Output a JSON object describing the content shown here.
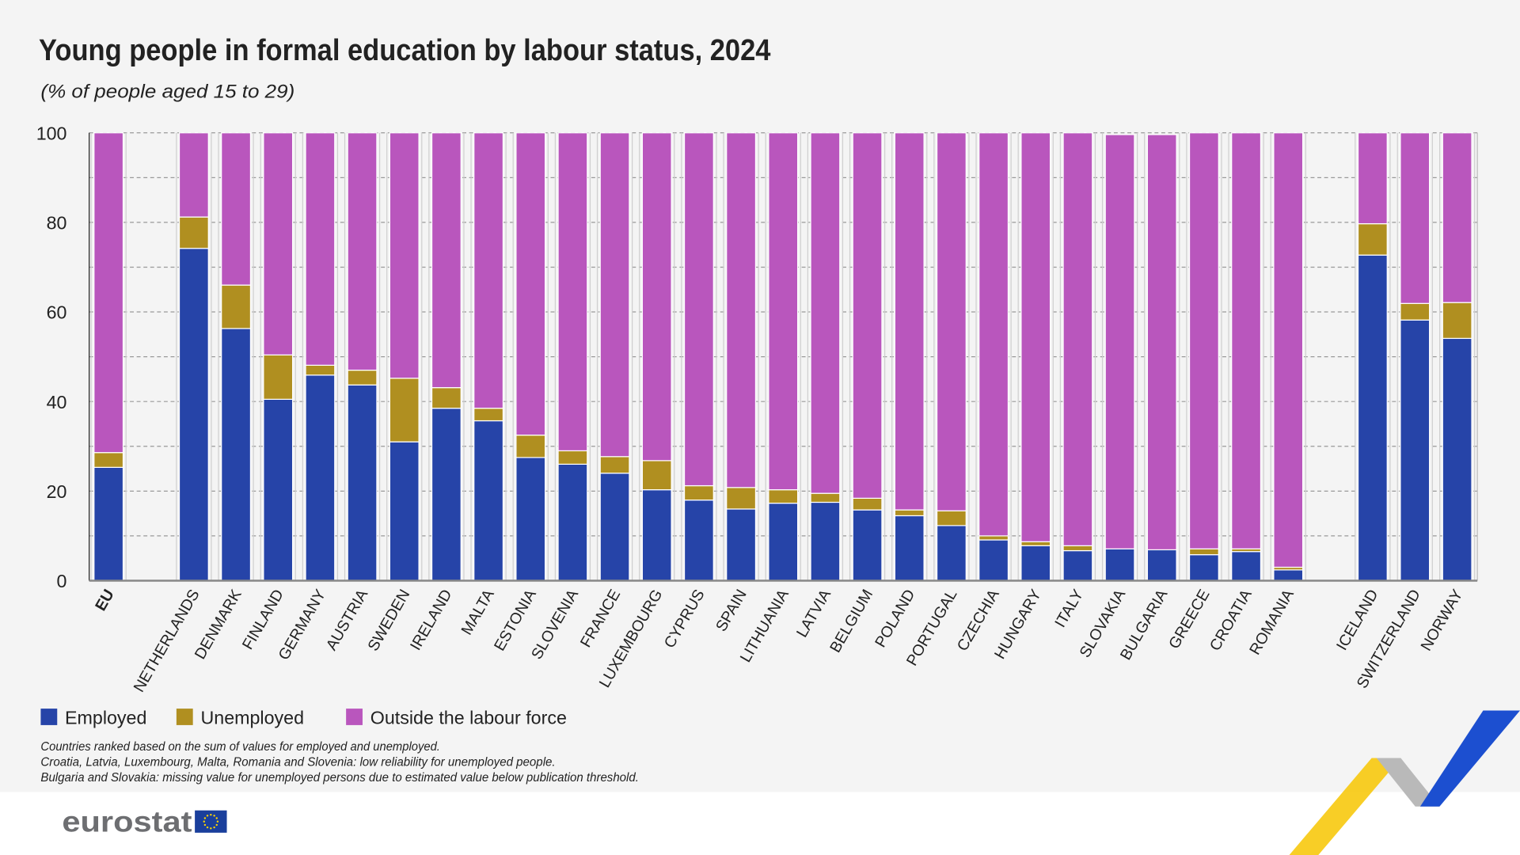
{
  "chart_data": {
    "type": "bar",
    "stacked": true,
    "title": "Young people in formal education by labour status, 2024",
    "subtitle": "(% of people aged 15 to 29)",
    "ylim": [
      0,
      100
    ],
    "yticks": [
      "0",
      "20",
      "40",
      "60",
      "80",
      "100"
    ],
    "grid": true,
    "legend_placement": "bottom-left",
    "categories": [
      "EU",
      "NETHERLANDS",
      "DENMARK",
      "FINLAND",
      "GERMANY",
      "AUSTRIA",
      "SWEDEN",
      "IRELAND",
      "MALTA",
      "ESTONIA",
      "SLOVENIA",
      "FRANCE",
      "LUXEMBOURG",
      "CYPRUS",
      "SPAIN",
      "LITHUANIA",
      "LATVIA",
      "BELGIUM",
      "POLAND",
      "PORTUGAL",
      "CZECHIA",
      "HUNGARY",
      "ITALY",
      "SLOVAKIA",
      "BULGARIA",
      "GREECE",
      "CROATIA",
      "ROMANIA",
      "ICELAND",
      "SWITZERLAND",
      "NORWAY"
    ],
    "series": [
      {
        "name": "Employed",
        "color": "#2644a8",
        "values": [
          25.3,
          74.2,
          56.3,
          40.5,
          45.9,
          43.7,
          31.0,
          38.5,
          35.7,
          27.5,
          26.0,
          24.0,
          20.3,
          18.0,
          16.0,
          17.3,
          17.5,
          15.8,
          14.5,
          12.3,
          9.1,
          7.8,
          6.7,
          7.1,
          6.9,
          5.8,
          6.5,
          2.4,
          72.7,
          58.2,
          54.1
        ]
      },
      {
        "name": "Unemployed",
        "color": "#b08f20",
        "values": [
          3.3,
          7.0,
          9.7,
          9.9,
          2.2,
          3.3,
          14.2,
          4.6,
          2.8,
          5.0,
          3.0,
          3.7,
          6.5,
          3.2,
          4.8,
          3.0,
          2.0,
          2.6,
          1.3,
          3.3,
          0.9,
          0.9,
          1.1,
          null,
          null,
          1.3,
          0.6,
          0.6,
          7.0,
          3.7,
          8.0
        ]
      },
      {
        "name": "Outside the labour force",
        "color": "#b956bd",
        "values": [
          71.4,
          18.8,
          34.0,
          49.6,
          51.9,
          53.0,
          54.8,
          56.9,
          61.5,
          67.5,
          71.0,
          72.3,
          73.2,
          78.8,
          79.2,
          79.7,
          80.5,
          81.6,
          84.2,
          84.4,
          90.0,
          91.3,
          92.2,
          92.5,
          92.7,
          92.9,
          92.9,
          97.0,
          20.3,
          38.1,
          37.9
        ]
      }
    ],
    "notes": [
      "Countries ranked based on the sum of values for employed and unemployed.",
      "Croatia, Latvia, Luxembourg, Malta, Romania and Slovenia: low reliability for unemployed people.",
      "Bulgaria and Slovakia: missing value for unemployed persons due to estimated value below publication threshold."
    ]
  },
  "footer": {
    "logo_text": "eurostat"
  }
}
